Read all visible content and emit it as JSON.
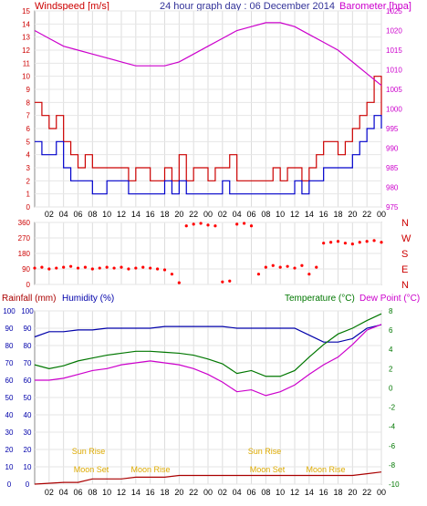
{
  "header": {
    "windspeed_label": "Windspeed [m/s]",
    "title": "24 hour graph day : 06 December 2014",
    "barometer_label": "Barometer [hpa]"
  },
  "lower_header": {
    "rainfall_label": "Rainfall (mm)",
    "humidity_label": "Humidity (%)",
    "temperature_label": "Temperature (°C)",
    "dewpoint_label": "Dew Point (°C)"
  },
  "time_ticks": [
    "02",
    "04",
    "06",
    "08",
    "10",
    "12",
    "14",
    "16",
    "18",
    "20",
    "22",
    "00",
    "02",
    "04",
    "06",
    "08",
    "10",
    "12",
    "14",
    "16",
    "18",
    "20",
    "22",
    "00"
  ],
  "sun_moon_labels": [
    {
      "text": "Sun Rise"
    },
    {
      "text": "Moon Set"
    },
    {
      "text": "Moon Rise"
    },
    {
      "text": "Sun Rise"
    },
    {
      "text": "Moon Set"
    },
    {
      "text": "Moon Rise"
    }
  ],
  "colors": {
    "windspeed": "#cc0000",
    "gust": "#0000cc",
    "barometer": "#cc00cc",
    "direction": "#ff0000",
    "humidity": "#0000aa",
    "temperature": "#007700",
    "dewpoint": "#cc00cc",
    "rainfall": "#aa0000",
    "left_axis": "#cc0000",
    "right_axis": "#cc00cc",
    "temp_axis": "#007700",
    "lower_left_axis": "#0000aa"
  },
  "chart_data": [
    {
      "type": "line",
      "title": "24 hour graph day : 06 December 2014",
      "ylabel": "Windspeed [m/s]",
      "y2label": "Barometer [hpa]",
      "ylim": [
        0,
        15
      ],
      "y2lim": [
        975,
        1025
      ],
      "y_ticks": [
        0,
        1,
        2,
        3,
        4,
        5,
        6,
        7,
        8,
        9,
        10,
        11,
        12,
        13,
        14,
        15
      ],
      "y2_ticks": [
        975,
        980,
        985,
        990,
        995,
        1000,
        1005,
        1010,
        1015,
        1020,
        1025
      ],
      "xlim": [
        0,
        48
      ],
      "series": [
        {
          "name": "Windspeed",
          "axis": "left",
          "x": [
            0,
            1,
            2,
            3,
            4,
            5,
            6,
            7,
            8,
            9,
            10,
            11,
            12,
            13,
            14,
            15,
            16,
            17,
            18,
            19,
            20,
            21,
            22,
            23,
            24,
            25,
            26,
            27,
            28,
            29,
            30,
            31,
            32,
            33,
            34,
            35,
            36,
            37,
            38,
            39,
            40,
            41,
            42,
            43,
            44,
            45,
            46,
            47,
            48
          ],
          "values": [
            8,
            7,
            6,
            7,
            5,
            4,
            3,
            4,
            3,
            3,
            3,
            3,
            3,
            2,
            3,
            3,
            2,
            2,
            3,
            2,
            4,
            2,
            3,
            3,
            2,
            3,
            3,
            4,
            2,
            2,
            2,
            2,
            2,
            3,
            2,
            3,
            3,
            2,
            3,
            4,
            5,
            5,
            4,
            5,
            6,
            7,
            8,
            10,
            7
          ]
        },
        {
          "name": "Gust",
          "axis": "left",
          "x": [
            0,
            1,
            2,
            3,
            4,
            5,
            6,
            7,
            8,
            9,
            10,
            11,
            12,
            13,
            14,
            15,
            16,
            17,
            18,
            19,
            20,
            21,
            22,
            23,
            24,
            25,
            26,
            27,
            28,
            29,
            30,
            31,
            32,
            33,
            34,
            35,
            36,
            37,
            38,
            39,
            40,
            41,
            42,
            43,
            44,
            45,
            46,
            47,
            48
          ],
          "values": [
            5,
            4,
            4,
            5,
            3,
            2,
            2,
            2,
            1,
            1,
            2,
            2,
            2,
            1,
            1,
            1,
            1,
            1,
            2,
            1,
            2,
            1,
            1,
            1,
            1,
            1,
            2,
            1,
            1,
            1,
            1,
            1,
            1,
            1,
            1,
            1,
            2,
            1,
            2,
            2,
            3,
            3,
            3,
            3,
            4,
            5,
            6,
            7,
            6
          ]
        },
        {
          "name": "Barometer",
          "axis": "right",
          "x": [
            0,
            2,
            4,
            6,
            8,
            10,
            12,
            14,
            16,
            18,
            20,
            22,
            24,
            26,
            28,
            30,
            32,
            34,
            36,
            38,
            40,
            42,
            44,
            46,
            48
          ],
          "values": [
            1020,
            1018,
            1016,
            1015,
            1014,
            1013,
            1012,
            1011,
            1011,
            1011,
            1012,
            1014,
            1016,
            1018,
            1020,
            1021,
            1022,
            1022,
            1021,
            1019,
            1017,
            1015,
            1012,
            1009,
            1006
          ]
        }
      ]
    },
    {
      "type": "scatter",
      "ylabel_right": [
        "N",
        "W",
        "S",
        "E",
        "N"
      ],
      "ylim": [
        0,
        360
      ],
      "y_ticks": [
        0,
        90,
        180,
        270,
        360
      ],
      "xlim": [
        0,
        48
      ],
      "series": [
        {
          "name": "Wind Direction",
          "x": [
            0,
            1,
            2,
            3,
            4,
            5,
            6,
            7,
            8,
            9,
            10,
            11,
            12,
            13,
            14,
            15,
            16,
            17,
            18,
            19,
            20,
            21,
            22,
            23,
            24,
            25,
            26,
            27,
            28,
            29,
            30,
            31,
            32,
            33,
            34,
            35,
            36,
            37,
            38,
            39,
            40,
            41,
            42,
            43,
            44,
            45,
            46,
            47,
            48
          ],
          "values": [
            95,
            100,
            90,
            95,
            100,
            105,
            95,
            100,
            90,
            95,
            100,
            95,
            100,
            90,
            95,
            100,
            95,
            90,
            85,
            60,
            10,
            340,
            350,
            355,
            345,
            340,
            15,
            20,
            350,
            355,
            340,
            60,
            100,
            110,
            100,
            105,
            95,
            110,
            60,
            100,
            240,
            245,
            250,
            240,
            235,
            245,
            250,
            255,
            245
          ]
        }
      ]
    },
    {
      "type": "line",
      "ylabel": "Humidity (%)",
      "ylim": [
        0,
        100
      ],
      "y_ticks": [
        0,
        10,
        20,
        30,
        40,
        50,
        60,
        70,
        80,
        90,
        100
      ],
      "y2label": "Temperature (°C)",
      "y2lim": [
        -10,
        8
      ],
      "y2_ticks": [
        -10,
        -8,
        -6,
        -4,
        -2,
        0,
        2,
        4,
        6,
        8
      ],
      "xlim": [
        0,
        48
      ],
      "series": [
        {
          "name": "Humidity",
          "axis": "left",
          "x": [
            0,
            2,
            4,
            6,
            8,
            10,
            12,
            14,
            16,
            18,
            20,
            22,
            24,
            26,
            28,
            30,
            32,
            34,
            36,
            38,
            40,
            42,
            44,
            46,
            48
          ],
          "values": [
            85,
            88,
            88,
            89,
            89,
            90,
            90,
            90,
            90,
            91,
            91,
            91,
            91,
            91,
            90,
            90,
            90,
            90,
            90,
            86,
            82,
            82,
            84,
            90,
            92
          ]
        },
        {
          "name": "Temperature",
          "axis": "right",
          "x": [
            0,
            2,
            4,
            6,
            8,
            10,
            12,
            14,
            16,
            18,
            20,
            22,
            24,
            26,
            28,
            30,
            32,
            34,
            36,
            38,
            40,
            42,
            44,
            46,
            48
          ],
          "values": [
            2.4,
            2.0,
            2.3,
            2.8,
            3.1,
            3.4,
            3.6,
            3.8,
            3.8,
            3.7,
            3.6,
            3.4,
            3.0,
            2.5,
            1.5,
            1.8,
            1.2,
            1.2,
            1.8,
            3.2,
            4.5,
            5.6,
            6.2,
            7.0,
            7.7
          ]
        },
        {
          "name": "Dew Point",
          "axis": "right",
          "x": [
            0,
            2,
            4,
            6,
            8,
            10,
            12,
            14,
            16,
            18,
            20,
            22,
            24,
            26,
            28,
            30,
            32,
            34,
            36,
            38,
            40,
            42,
            44,
            46,
            48
          ],
          "values": [
            0.8,
            0.8,
            1.0,
            1.4,
            1.8,
            2.0,
            2.4,
            2.6,
            2.8,
            2.6,
            2.4,
            2.0,
            1.4,
            0.6,
            -0.4,
            -0.2,
            -0.8,
            -0.4,
            0.3,
            1.4,
            2.4,
            3.2,
            4.5,
            6.0,
            6.6
          ]
        },
        {
          "name": "Rainfall",
          "axis": "left",
          "x": [
            0,
            4,
            6,
            8,
            10,
            12,
            14,
            16,
            18,
            20,
            22,
            24,
            26,
            28,
            30,
            32,
            34,
            36,
            38,
            40,
            42,
            44,
            46,
            48
          ],
          "values": [
            0,
            1,
            1,
            3,
            3,
            3,
            4,
            4,
            4,
            5,
            5,
            5,
            5,
            5,
            5,
            5,
            5,
            5,
            5,
            5,
            5,
            5,
            6,
            7
          ]
        }
      ]
    }
  ]
}
